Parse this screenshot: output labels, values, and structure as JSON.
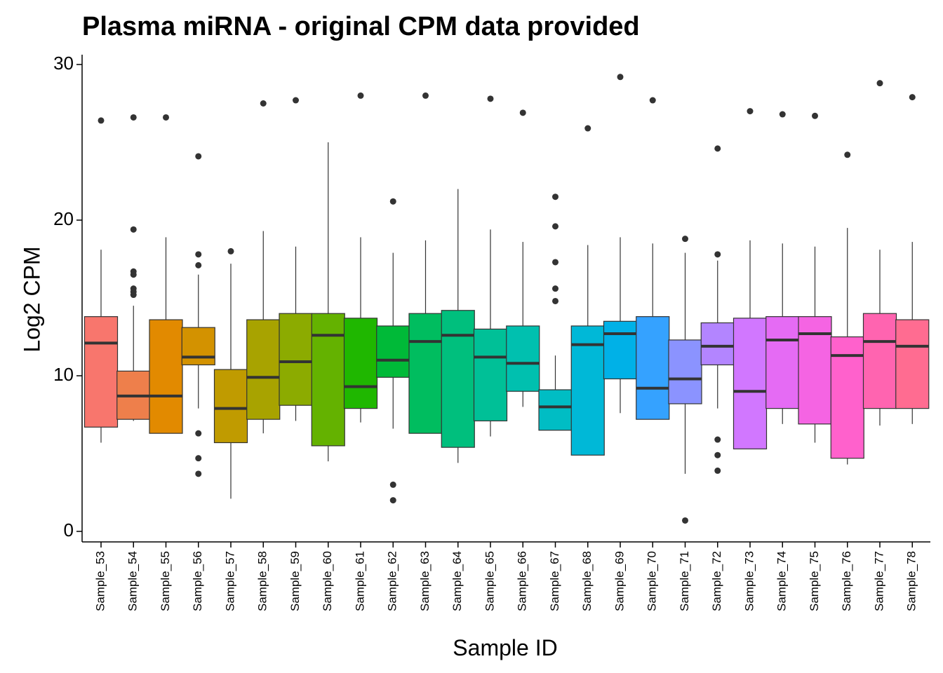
{
  "chart_data": {
    "type": "box",
    "title": "Plasma miRNA - original CPM data provided",
    "xlabel": "Sample ID",
    "ylabel": "Log2 CPM",
    "ylim": [
      0,
      30
    ],
    "yticks": [
      0,
      10,
      20,
      30
    ],
    "grid": false,
    "legend": "none",
    "categories": [
      "Sample_53",
      "Sample_54",
      "Sample_55",
      "Sample_56",
      "Sample_57",
      "Sample_58",
      "Sample_59",
      "Sample_60",
      "Sample_61",
      "Sample_62",
      "Sample_63",
      "Sample_64",
      "Sample_65",
      "Sample_66",
      "Sample_67",
      "Sample_68",
      "Sample_69",
      "Sample_70",
      "Sample_71",
      "Sample_72",
      "Sample_73",
      "Sample_74",
      "Sample_75",
      "Sample_76",
      "Sample_77",
      "Sample_78"
    ],
    "boxes": [
      {
        "low": 5.7,
        "q1": 6.7,
        "median": 12.1,
        "q3": 13.8,
        "high": 18.1,
        "outliers": [
          26.4
        ],
        "color": "#F8766D"
      },
      {
        "low": 7.1,
        "q1": 7.2,
        "median": 8.7,
        "q3": 10.3,
        "high": 14.5,
        "outliers": [
          26.6,
          19.4,
          16.7,
          16.5,
          15.6,
          15.4,
          15.2
        ],
        "color": "#EE7F4B"
      },
      {
        "low": 6.3,
        "q1": 6.3,
        "median": 8.7,
        "q3": 13.6,
        "high": 18.9,
        "outliers": [
          26.6
        ],
        "color": "#E28A00"
      },
      {
        "low": 7.9,
        "q1": 10.7,
        "median": 11.2,
        "q3": 13.1,
        "high": 16.5,
        "outliers": [
          24.1,
          17.8,
          17.1,
          6.3,
          4.7,
          3.7
        ],
        "color": "#D39200"
      },
      {
        "low": 2.1,
        "q1": 5.7,
        "median": 7.9,
        "q3": 10.4,
        "high": 17.2,
        "outliers": [
          18.0
        ],
        "color": "#C09B00"
      },
      {
        "low": 6.3,
        "q1": 7.2,
        "median": 9.9,
        "q3": 13.6,
        "high": 19.3,
        "outliers": [
          27.5
        ],
        "color": "#A8A300"
      },
      {
        "low": 7.1,
        "q1": 8.1,
        "median": 10.9,
        "q3": 14.0,
        "high": 18.3,
        "outliers": [
          27.7
        ],
        "color": "#8CAB00"
      },
      {
        "low": 4.5,
        "q1": 5.5,
        "median": 12.6,
        "q3": 14.0,
        "high": 25.0,
        "outliers": [],
        "color": "#64B200"
      },
      {
        "low": 7.0,
        "q1": 7.9,
        "median": 9.3,
        "q3": 13.7,
        "high": 18.9,
        "outliers": [
          28.0
        ],
        "color": "#1FB700"
      },
      {
        "low": 6.6,
        "q1": 9.9,
        "median": 11.0,
        "q3": 13.2,
        "high": 17.9,
        "outliers": [
          21.2,
          3.0,
          2.0
        ],
        "color": "#00BA38"
      },
      {
        "low": 6.3,
        "q1": 6.3,
        "median": 12.2,
        "q3": 14.0,
        "high": 18.7,
        "outliers": [
          28.0
        ],
        "color": "#00BD5F"
      },
      {
        "low": 4.4,
        "q1": 5.4,
        "median": 12.6,
        "q3": 14.2,
        "high": 22.0,
        "outliers": [],
        "color": "#00BF7D"
      },
      {
        "low": 6.1,
        "q1": 7.1,
        "median": 11.2,
        "q3": 13.0,
        "high": 19.4,
        "outliers": [
          27.8
        ],
        "color": "#00C097"
      },
      {
        "low": 8.0,
        "q1": 9.0,
        "median": 10.8,
        "q3": 13.2,
        "high": 18.6,
        "outliers": [
          26.9
        ],
        "color": "#00C0AF"
      },
      {
        "low": 6.5,
        "q1": 6.5,
        "median": 8.0,
        "q3": 9.1,
        "high": 11.3,
        "outliers": [
          21.5,
          19.6,
          17.3,
          15.6,
          14.8
        ],
        "color": "#00BDC4"
      },
      {
        "low": 4.9,
        "q1": 4.9,
        "median": 12.0,
        "q3": 13.2,
        "high": 18.4,
        "outliers": [
          25.9
        ],
        "color": "#00B8D7"
      },
      {
        "low": 7.6,
        "q1": 9.8,
        "median": 12.7,
        "q3": 13.5,
        "high": 18.9,
        "outliers": [
          29.2
        ],
        "color": "#00B1E7"
      },
      {
        "low": 7.2,
        "q1": 7.2,
        "median": 9.2,
        "q3": 13.8,
        "high": 18.5,
        "outliers": [
          27.7
        ],
        "color": "#35A2FF"
      },
      {
        "low": 3.7,
        "q1": 8.2,
        "median": 9.8,
        "q3": 12.3,
        "high": 17.9,
        "outliers": [
          18.8,
          0.7
        ],
        "color": "#8B93FF"
      },
      {
        "low": 7.9,
        "q1": 10.7,
        "median": 11.9,
        "q3": 13.4,
        "high": 17.4,
        "outliers": [
          24.6,
          17.8,
          5.9,
          4.9,
          3.9
        ],
        "color": "#B385FF"
      },
      {
        "low": 5.3,
        "q1": 5.3,
        "median": 9.0,
        "q3": 13.7,
        "high": 18.7,
        "outliers": [
          27.0
        ],
        "color": "#D177FF"
      },
      {
        "low": 6.9,
        "q1": 7.9,
        "median": 12.3,
        "q3": 13.8,
        "high": 18.5,
        "outliers": [
          26.8
        ],
        "color": "#E56BF4"
      },
      {
        "low": 5.7,
        "q1": 6.9,
        "median": 12.7,
        "q3": 13.8,
        "high": 18.3,
        "outliers": [
          26.7
        ],
        "color": "#F564E3"
      },
      {
        "low": 4.3,
        "q1": 4.7,
        "median": 11.3,
        "q3": 12.5,
        "high": 19.5,
        "outliers": [
          24.2
        ],
        "color": "#FF61CC"
      },
      {
        "low": 6.8,
        "q1": 7.9,
        "median": 12.2,
        "q3": 14.0,
        "high": 18.1,
        "outliers": [
          28.8
        ],
        "color": "#FF64B0"
      },
      {
        "low": 6.9,
        "q1": 7.9,
        "median": 11.9,
        "q3": 13.6,
        "high": 18.6,
        "outliers": [
          27.9
        ],
        "color": "#FF6C91"
      }
    ]
  }
}
